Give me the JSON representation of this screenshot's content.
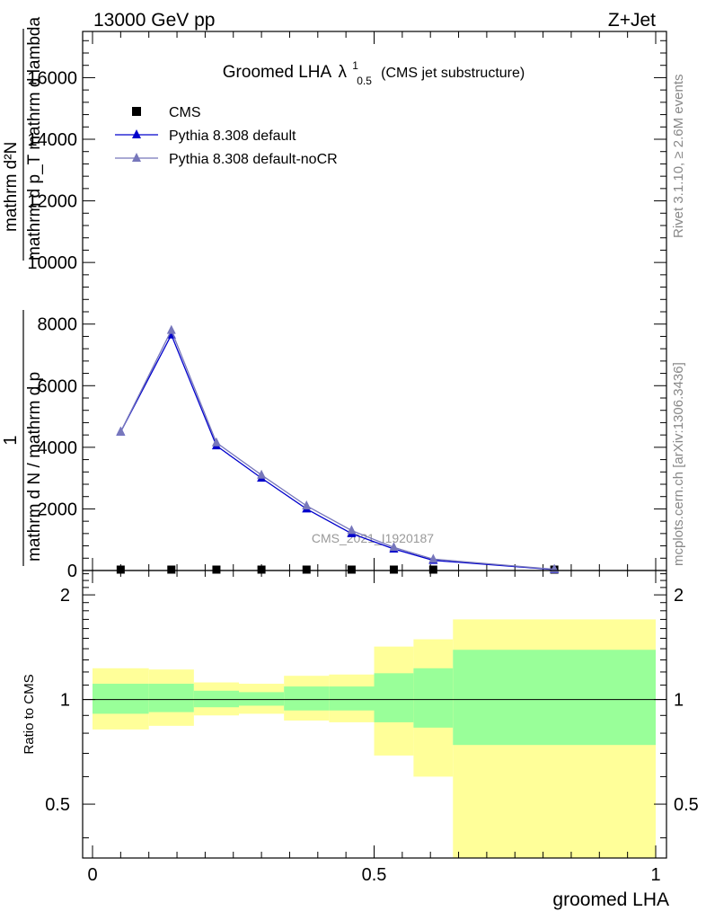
{
  "header": {
    "left": "13000 GeV pp",
    "right": "Z+Jet"
  },
  "side_labels": {
    "rivet": "Rivet 3.1.10, ≥ 2.6M events",
    "mcplots": "mcplots.cern.ch [arXiv:1306.3436]"
  },
  "chart_data": [
    {
      "type": "line",
      "title_main": "Groomed LHA",
      "title_symbol": "λ",
      "title_sup": "1",
      "title_sub": "0.5",
      "title_suffix": "(CMS jet substructure)",
      "watermark": "CMS_2021_I1920187",
      "ylabel_numerator": "1",
      "ylabel_denominator": "mathrm d N / mathrm d p",
      "ylabel_right_num": "mathrm d²N",
      "ylabel_right_den": "mathrm d p_T mathrm d lambda",
      "xlim": [
        0,
        1
      ],
      "ylim": [
        0,
        17500
      ],
      "y_ticks": [
        0,
        2000,
        4000,
        6000,
        8000,
        10000,
        12000,
        14000,
        16000
      ],
      "y_tick_labels": [
        "0",
        "2000",
        "4000",
        "6000",
        "8000",
        "10000",
        "12000",
        "14000",
        "16000"
      ],
      "legend_position": "top-left",
      "series": [
        {
          "name": "CMS",
          "marker": "square",
          "color": "#000000",
          "x": [
            0.05,
            0.14,
            0.22,
            0.3,
            0.38,
            0.46,
            0.535,
            0.605,
            0.82
          ],
          "y": [
            0,
            0,
            0,
            0,
            0,
            0,
            0,
            0,
            0
          ]
        },
        {
          "name": "Pythia 8.308 default",
          "marker": "triangle",
          "color": "#0000cc",
          "x": [
            0.05,
            0.14,
            0.22,
            0.3,
            0.38,
            0.46,
            0.535,
            0.605,
            0.82
          ],
          "y": [
            4500,
            7650,
            4050,
            3000,
            2000,
            1200,
            700,
            330,
            30
          ]
        },
        {
          "name": "Pythia 8.308 default-noCR",
          "marker": "triangle",
          "color": "#7777bb",
          "x": [
            0.05,
            0.14,
            0.22,
            0.3,
            0.38,
            0.46,
            0.535,
            0.605,
            0.82
          ],
          "y": [
            4500,
            7800,
            4150,
            3100,
            2100,
            1300,
            750,
            370,
            40
          ]
        }
      ]
    },
    {
      "type": "area",
      "ylabel": "Ratio to CMS",
      "xlabel": "groomed LHA",
      "xlim": [
        0,
        1
      ],
      "ylim": [
        0.35,
        2.35
      ],
      "log_y": true,
      "x_ticks": [
        0,
        0.5,
        1
      ],
      "x_tick_labels": [
        "0",
        "0.5",
        "1"
      ],
      "y_ticks": [
        0.5,
        1,
        2
      ],
      "y_tick_labels": [
        "0.5",
        "1",
        "2"
      ],
      "reference_line": 1,
      "colors": {
        "outer_band": "#ffff99",
        "inner_band": "#99ff99"
      },
      "bins": [
        {
          "lo": 0.0,
          "hi": 0.1,
          "green": [
            0.91,
            1.11
          ],
          "yellow": [
            0.82,
            1.23
          ]
        },
        {
          "lo": 0.1,
          "hi": 0.18,
          "green": [
            0.92,
            1.11
          ],
          "yellow": [
            0.84,
            1.22
          ]
        },
        {
          "lo": 0.18,
          "hi": 0.26,
          "green": [
            0.95,
            1.06
          ],
          "yellow": [
            0.9,
            1.12
          ]
        },
        {
          "lo": 0.26,
          "hi": 0.34,
          "green": [
            0.96,
            1.05
          ],
          "yellow": [
            0.91,
            1.11
          ]
        },
        {
          "lo": 0.34,
          "hi": 0.42,
          "green": [
            0.93,
            1.09
          ],
          "yellow": [
            0.87,
            1.17
          ]
        },
        {
          "lo": 0.42,
          "hi": 0.5,
          "green": [
            0.93,
            1.09
          ],
          "yellow": [
            0.86,
            1.18
          ]
        },
        {
          "lo": 0.5,
          "hi": 0.57,
          "green": [
            0.86,
            1.19
          ],
          "yellow": [
            0.69,
            1.42
          ]
        },
        {
          "lo": 0.57,
          "hi": 0.64,
          "green": [
            0.83,
            1.23
          ],
          "yellow": [
            0.6,
            1.49
          ]
        },
        {
          "lo": 0.64,
          "hi": 1.0,
          "green": [
            0.74,
            1.39
          ],
          "yellow": [
            0.35,
            1.7
          ]
        }
      ]
    }
  ]
}
